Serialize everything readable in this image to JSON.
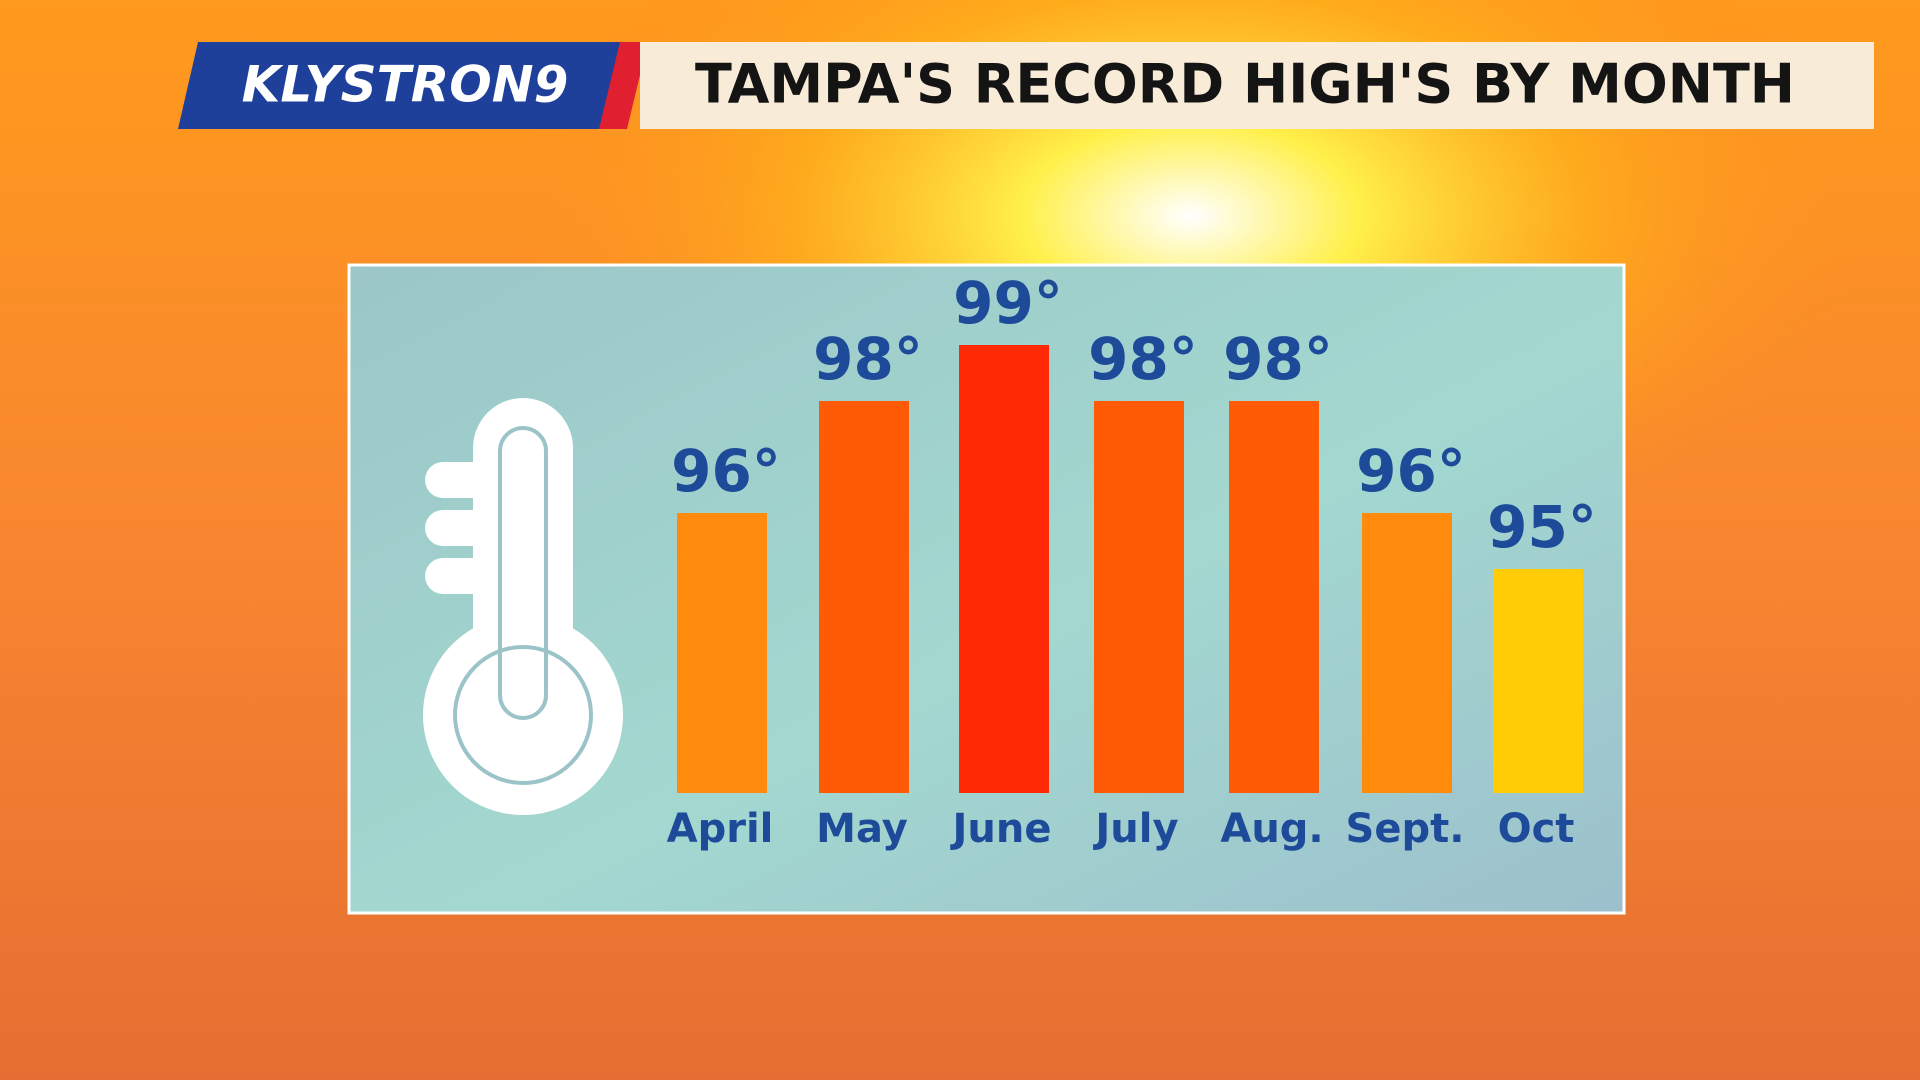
{
  "chart_data": {
    "type": "bar",
    "brand": "KLYSTRON9",
    "title": "TAMPA'S RECORD HIGH'S BY MONTH",
    "categories": [
      "April",
      "May",
      "June",
      "July",
      "Aug.",
      "Sept.",
      "Oct"
    ],
    "values": [
      96,
      98,
      99,
      98,
      98,
      96,
      95
    ],
    "value_labels": [
      "96°",
      "98°",
      "99°",
      "98°",
      "98°",
      "96°",
      "95°"
    ],
    "colors": [
      "#ff8a0c",
      "#ff5a05",
      "#ff2a05",
      "#ff5a05",
      "#ff5a05",
      "#ff8a0c",
      "#ffcc05"
    ],
    "ylim": [
      91,
      99
    ]
  }
}
